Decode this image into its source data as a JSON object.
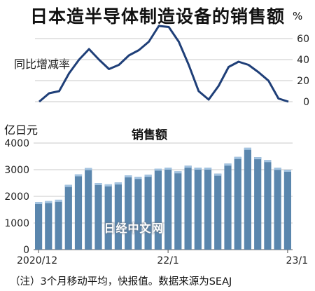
{
  "title": "日本造半导体制造设备的销售额",
  "note": "（注）3个月移动平均，快报值。数据来源为SEAJ",
  "watermark": "日经中文网",
  "chart_data": [
    {
      "type": "line",
      "ylabel": "同比增减率",
      "unit": "%",
      "ylim": [
        0,
        70
      ],
      "yticks": [
        "60",
        "40",
        "20",
        "0"
      ],
      "ytick_values": [
        60,
        40,
        20,
        0
      ],
      "color": "#1f3f78",
      "values": [
        0,
        8,
        10,
        27,
        40,
        50,
        40,
        31,
        35,
        44,
        49,
        57,
        72,
        71,
        57,
        35,
        10,
        2,
        15,
        33,
        38,
        35,
        28,
        20,
        3,
        0
      ]
    },
    {
      "type": "bar",
      "title": "销售额",
      "ylabel": "亿日元",
      "ylim": [
        0,
        4000
      ],
      "yticks": [
        "4000",
        "3000",
        "2000",
        "1000",
        "0"
      ],
      "ytick_values": [
        4000,
        3000,
        2000,
        1000,
        0
      ],
      "xticks": [
        {
          "index": 0,
          "label": "2020/12"
        },
        {
          "index": 13,
          "label": "22/1"
        },
        {
          "index": 25,
          "label": "23/1"
        }
      ],
      "bar_color": "#5a86ad",
      "bar_highlight_color": "#a3c3e0",
      "values": [
        1790,
        1820,
        1870,
        2430,
        2830,
        3060,
        2500,
        2450,
        2520,
        2790,
        2730,
        2810,
        3040,
        3080,
        2940,
        3150,
        3080,
        3080,
        2850,
        3230,
        3480,
        3820,
        3470,
        3360,
        3070,
        3000
      ]
    }
  ]
}
